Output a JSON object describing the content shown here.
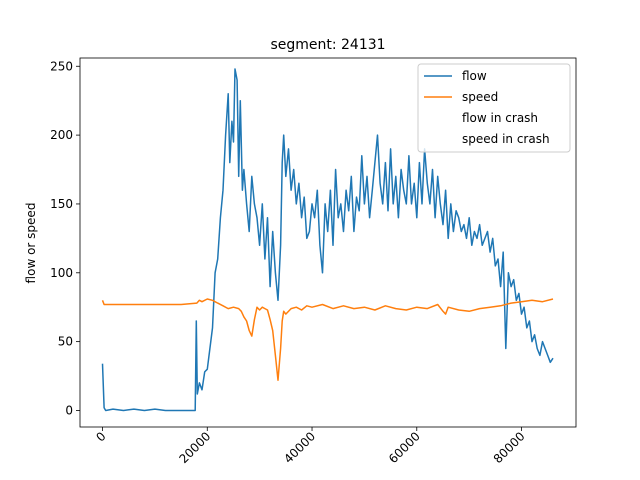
{
  "chart_data": {
    "type": "line",
    "title": "segment: 24131",
    "xlabel": "",
    "ylabel": "flow or speed",
    "xlim": [
      -4300,
      90400
    ],
    "ylim": [
      -12,
      256
    ],
    "xticks": [
      0,
      20000,
      40000,
      60000,
      80000
    ],
    "xtick_labels": [
      "0",
      "20000",
      "40000",
      "60000",
      "80000"
    ],
    "yticks": [
      0,
      50,
      100,
      150,
      200,
      250
    ],
    "ytick_labels": [
      "0",
      "50",
      "100",
      "150",
      "200",
      "250"
    ],
    "grid": false,
    "legend_position": "top-right",
    "series": [
      {
        "name": "flow",
        "color": "#1f77b4",
        "x": [
          0,
          300,
          600,
          2000,
          4000,
          6000,
          8000,
          10000,
          12000,
          14000,
          16000,
          17700,
          17900,
          18100,
          18500,
          19000,
          19500,
          20000,
          20500,
          21000,
          21500,
          22000,
          22500,
          23000,
          23500,
          24000,
          24300,
          24700,
          25000,
          25300,
          25700,
          26000,
          26300,
          26700,
          27000,
          27500,
          28000,
          28500,
          29000,
          29500,
          30000,
          30500,
          31000,
          31500,
          32000,
          32500,
          33000,
          33500,
          34000,
          34300,
          34600,
          35000,
          35500,
          36000,
          36500,
          37000,
          37500,
          38000,
          38500,
          39000,
          39500,
          40000,
          40500,
          41000,
          41500,
          42000,
          42500,
          43000,
          43500,
          44000,
          44500,
          45000,
          45500,
          46000,
          46500,
          47000,
          47500,
          48000,
          48500,
          49000,
          49500,
          50000,
          50500,
          51000,
          51500,
          52000,
          52500,
          53000,
          53500,
          54000,
          54500,
          55000,
          55500,
          56000,
          56500,
          57000,
          57500,
          58000,
          58500,
          59000,
          59500,
          60000,
          60500,
          61000,
          61500,
          62000,
          62500,
          63000,
          63500,
          64000,
          64500,
          65000,
          65500,
          66000,
          66500,
          67000,
          67500,
          68000,
          68500,
          69000,
          69500,
          70000,
          70500,
          71000,
          71500,
          72000,
          72500,
          73000,
          73500,
          74000,
          74500,
          75000,
          75500,
          76000,
          76500,
          77000,
          77500,
          78000,
          78500,
          79000,
          79500,
          80000,
          80500,
          81000,
          81500,
          82000,
          82500,
          83000,
          83500,
          84000,
          84500,
          85000,
          85500,
          86000
        ],
        "y": [
          34,
          2,
          0,
          1,
          0,
          1,
          0,
          1,
          0,
          0,
          0,
          0,
          65,
          12,
          20,
          15,
          28,
          30,
          45,
          60,
          100,
          110,
          140,
          160,
          200,
          230,
          180,
          210,
          195,
          248,
          240,
          170,
          225,
          160,
          175,
          150,
          130,
          170,
          150,
          140,
          120,
          150,
          110,
          140,
          90,
          130,
          100,
          80,
          120,
          180,
          200,
          170,
          190,
          160,
          175,
          150,
          165,
          140,
          155,
          125,
          130,
          150,
          140,
          160,
          120,
          100,
          150,
          130,
          160,
          120,
          175,
          140,
          150,
          130,
          160,
          145,
          170,
          130,
          155,
          145,
          185,
          150,
          170,
          140,
          160,
          180,
          200,
          165,
          150,
          180,
          145,
          190,
          150,
          170,
          140,
          175,
          160,
          150,
          185,
          150,
          165,
          140,
          180,
          150,
          190,
          165,
          150,
          175,
          140,
          170,
          150,
          135,
          160,
          125,
          150,
          130,
          145,
          140,
          130,
          135,
          125,
          140,
          120,
          130,
          125,
          135,
          120,
          125,
          130,
          115,
          125,
          105,
          110,
          90,
          115,
          45,
          100,
          90,
          95,
          80,
          85,
          70,
          75,
          60,
          65,
          50,
          55,
          45,
          40,
          50,
          45,
          40,
          35,
          38
        ]
      },
      {
        "name": "speed",
        "color": "#ff7f0e",
        "x": [
          0,
          300,
          1000,
          5000,
          10000,
          15000,
          18000,
          18500,
          19000,
          20000,
          21000,
          22000,
          23000,
          24000,
          25000,
          26000,
          26500,
          27000,
          27500,
          28000,
          28500,
          29000,
          29500,
          30000,
          30500,
          31000,
          31500,
          32000,
          32500,
          33000,
          33500,
          34000,
          34300,
          34600,
          35000,
          36000,
          37000,
          38000,
          39000,
          40000,
          42000,
          44000,
          46000,
          48000,
          50000,
          52000,
          54000,
          56000,
          58000,
          60000,
          62000,
          64000,
          65000,
          65500,
          66000,
          68000,
          70000,
          72000,
          74000,
          76000,
          78000,
          80000,
          82000,
          84000,
          86000
        ],
        "y": [
          80,
          77,
          77,
          77,
          77,
          77,
          78,
          80,
          79,
          81,
          80,
          78,
          76,
          74,
          75,
          74,
          72,
          68,
          65,
          58,
          54,
          66,
          75,
          73,
          75,
          74,
          73,
          66,
          58,
          40,
          22,
          45,
          65,
          72,
          70,
          74,
          75,
          73,
          76,
          75,
          77,
          74,
          76,
          74,
          75,
          73,
          76,
          74,
          73,
          75,
          74,
          77,
          72,
          70,
          75,
          73,
          72,
          74,
          75,
          76,
          78,
          79,
          80,
          79,
          81
        ]
      },
      {
        "name": "flow in crash",
        "color": "#2ca02c",
        "x": [],
        "y": []
      },
      {
        "name": "speed in crash",
        "color": "#d62728",
        "x": [],
        "y": []
      }
    ]
  }
}
